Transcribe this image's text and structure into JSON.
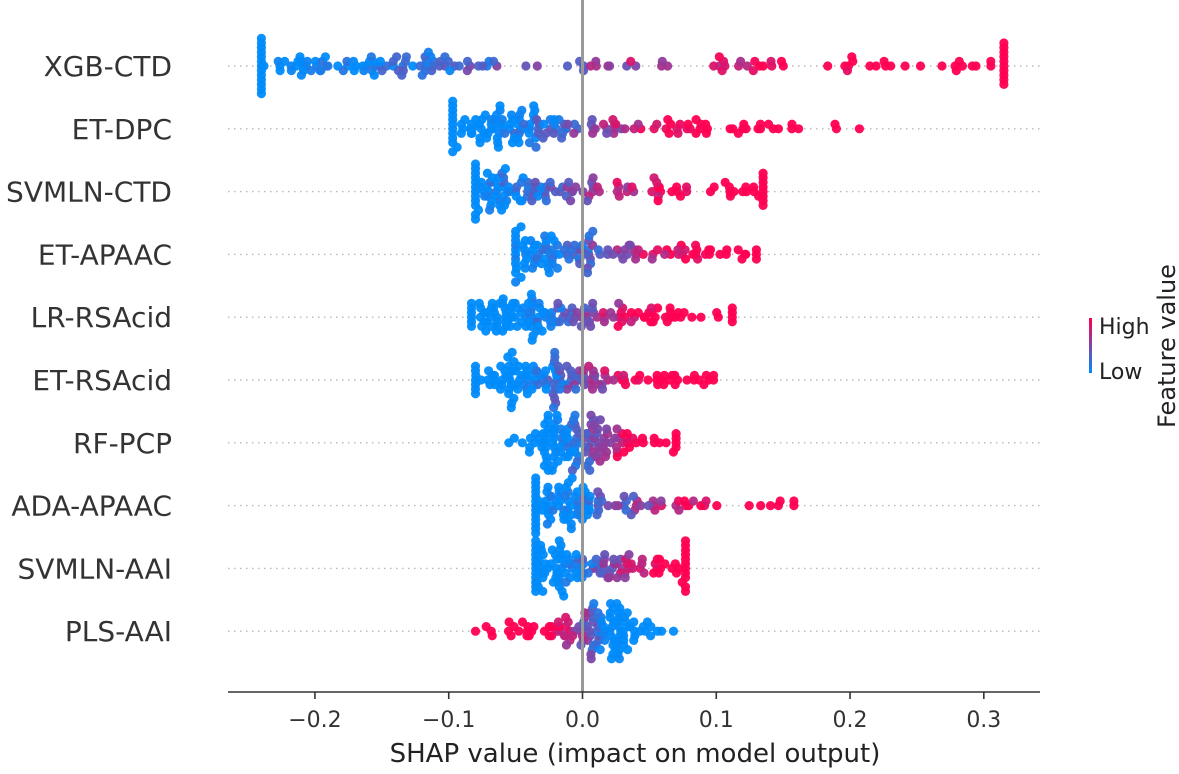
{
  "chart_data": {
    "type": "beeswarm",
    "title": "",
    "xlabel": "SHAP value (impact on model output)",
    "ylabel": "",
    "xlim": [
      -0.265,
      0.342
    ],
    "xticks": [
      -0.2,
      -0.1,
      0.0,
      0.1,
      0.2,
      0.3
    ],
    "xtick_labels": [
      "−0.2",
      "−0.1",
      "0.0",
      "0.1",
      "0.2",
      "0.3"
    ],
    "colors": {
      "high": "#ff0052",
      "low": "#008bfb",
      "zero_line": "#999999",
      "axis": "#333333"
    },
    "colorbar": {
      "title": "Feature value",
      "high_label": "High",
      "low_label": "Low"
    },
    "features": [
      {
        "name": "XGB-CTD",
        "count": 170,
        "min": -0.24,
        "max": 0.315,
        "low_center": -0.18,
        "high_center": 0.16,
        "high_count": 60
      },
      {
        "name": "ET-DPC",
        "count": 150,
        "min": -0.097,
        "max": 0.207,
        "low_center": -0.05,
        "high_center": 0.07,
        "high_count": 45
      },
      {
        "name": "SVMLN-CTD",
        "count": 150,
        "min": -0.08,
        "max": 0.135,
        "low_center": -0.065,
        "high_center": 0.065,
        "high_count": 55
      },
      {
        "name": "ET-APAAC",
        "count": 140,
        "min": -0.05,
        "max": 0.13,
        "low_center": -0.035,
        "high_center": 0.075,
        "high_count": 45
      },
      {
        "name": "LR-RSAcid",
        "count": 140,
        "min": -0.083,
        "max": 0.112,
        "low_center": -0.035,
        "high_center": 0.045,
        "high_count": 45
      },
      {
        "name": "ET-RSAcid",
        "count": 140,
        "min": -0.08,
        "max": 0.098,
        "low_center": -0.035,
        "high_center": 0.04,
        "high_count": 45
      },
      {
        "name": "RF-PCP",
        "count": 130,
        "min": -0.055,
        "max": 0.07,
        "low_center": -0.012,
        "high_center": 0.035,
        "high_count": 40
      },
      {
        "name": "ADA-APAAC",
        "count": 120,
        "min": -0.035,
        "max": 0.158,
        "low_center": -0.012,
        "high_center": 0.09,
        "high_count": 25
      },
      {
        "name": "SVMLN-AAI",
        "count": 120,
        "min": -0.035,
        "max": 0.077,
        "low_center": -0.01,
        "high_center": 0.05,
        "high_count": 35
      },
      {
        "name": "PLS-AAI",
        "count": 120,
        "min": -0.08,
        "max": 0.068,
        "low_center": 0.02,
        "high_center": -0.02,
        "high_count": 40
      }
    ]
  }
}
